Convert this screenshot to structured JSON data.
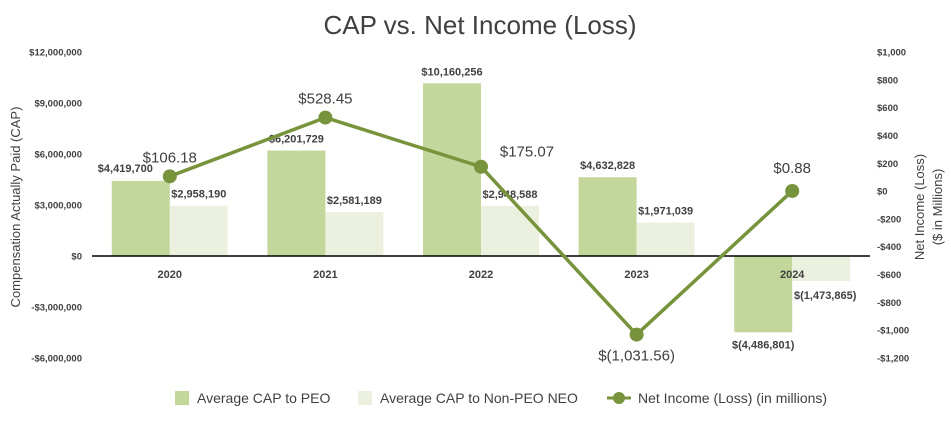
{
  "chart_data": {
    "type": "bar",
    "title": "CAP vs. Net Income (Loss)",
    "categories": [
      "2020",
      "2021",
      "2022",
      "2023",
      "2024"
    ],
    "series": [
      {
        "name": "Average CAP to PEO",
        "kind": "bar",
        "axis": "left",
        "color": "#c3d69b",
        "values": [
          4419700,
          6201729,
          10160256,
          4632828,
          -4486801
        ],
        "labels": [
          "$4,419,700",
          "$6,201,729",
          "$10,160,256",
          "$4,632,828",
          "$(4,486,801)"
        ]
      },
      {
        "name": "Average CAP to Non-PEO NEO",
        "kind": "bar",
        "axis": "left",
        "color": "#ebf1de",
        "values": [
          2958190,
          2581189,
          2948588,
          1971039,
          -1473865
        ],
        "labels": [
          "$2,958,190",
          "$2,581,189",
          "$2,948,588",
          "$1,971,039",
          "$(1,473,865)"
        ]
      },
      {
        "name": "Net Income (Loss) (in millions)",
        "kind": "line",
        "axis": "right",
        "color": "#77933c",
        "values": [
          106.18,
          528.45,
          175.07,
          -1031.56,
          0.88
        ],
        "labels": [
          "$106.18",
          "$528.45",
          "$175.07",
          "$(1,031.56)",
          "$0.88"
        ]
      }
    ],
    "ylabel": "Compensation Actually Paid (CAP)",
    "ylim": [
      -6000000,
      12000000
    ],
    "yticks": [
      -6000000,
      -3000000,
      0,
      3000000,
      6000000,
      9000000,
      12000000
    ],
    "ytick_labels": [
      "-$6,000,000",
      "-$3,000,000",
      "$0",
      "$3,000,000",
      "$6,000,000",
      "$9,000,000",
      "$12,000,000"
    ],
    "y2label_lines": [
      "Net Income (Loss)",
      "($ in Millions)"
    ],
    "y2lim": [
      -1200,
      1000
    ],
    "y2ticks": [
      -1200,
      -1000,
      -800,
      -600,
      -400,
      -200,
      0,
      200,
      400,
      600,
      800,
      1000
    ],
    "y2tick_labels": [
      "-$1,200",
      "-$1,000",
      "-$800",
      "-$600",
      "-$400",
      "-$200",
      "$0",
      "$200",
      "$400",
      "$600",
      "$800",
      "$1,000"
    ],
    "grid": false,
    "legend": "bottom"
  }
}
